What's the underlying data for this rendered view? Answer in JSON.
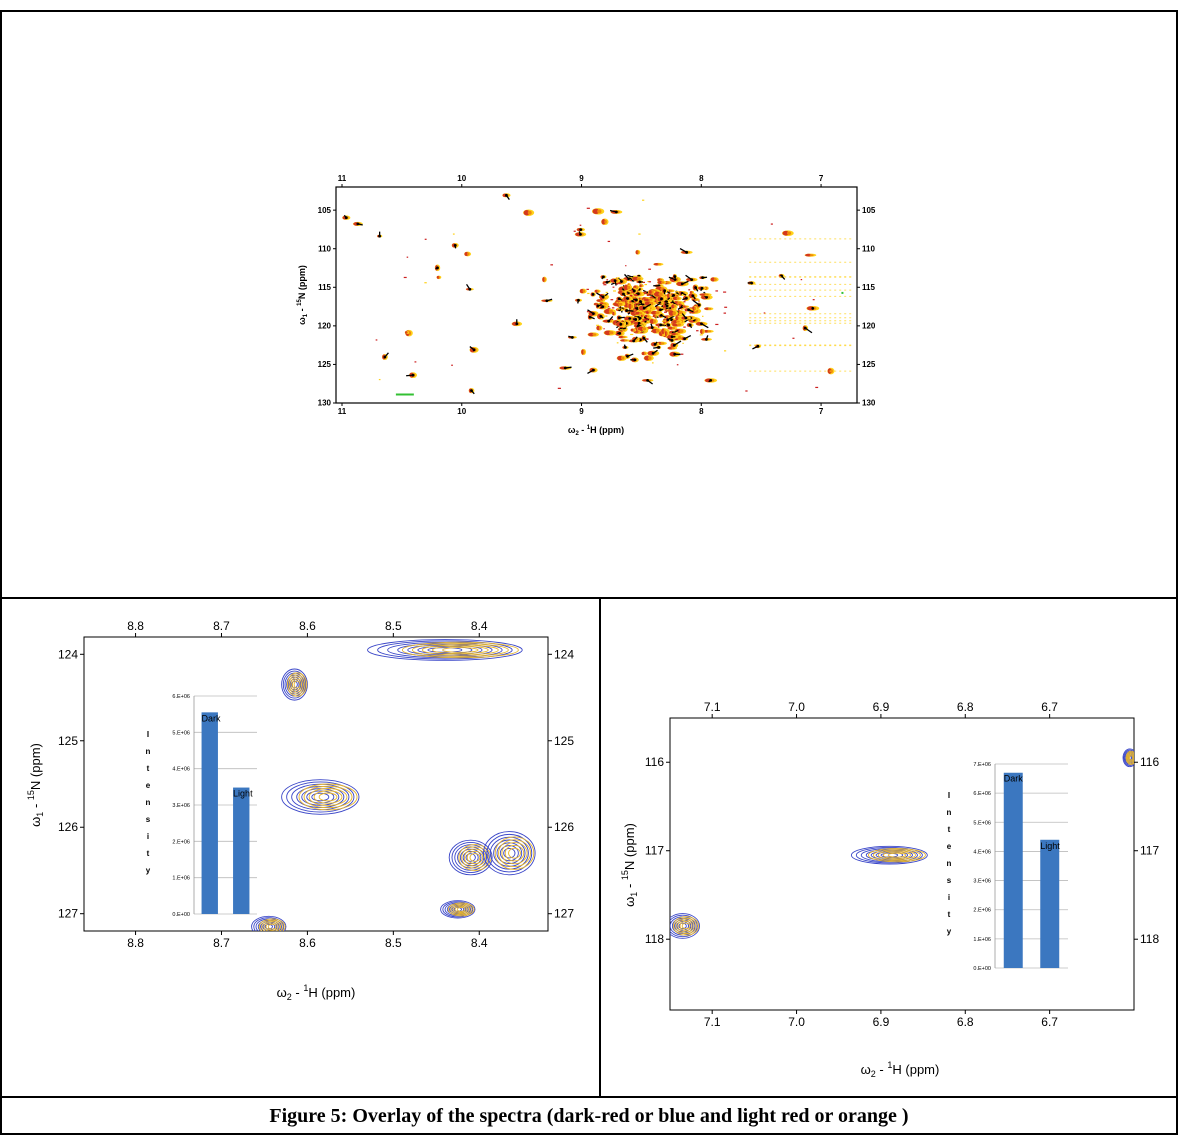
{
  "caption": "Figure 5: Overlay of the spectra (dark-red or blue and light red or orange )",
  "colors": {
    "dark_overview": "#cc1f1f",
    "light_overview": "#ffd21a",
    "orange_overview": "#f08a0a",
    "dark_zoom": "#3a46c8",
    "light_zoom": "#e6b42a",
    "bar": "#3b77c0"
  },
  "chart_data": [
    {
      "type": "scatter",
      "xlabel": "ω2 - 1H (ppm)",
      "ylabel": "ω1 - 15N (ppm)",
      "xlim": [
        11.05,
        6.7
      ],
      "ylim": [
        102,
        130
      ],
      "x_ticks": [
        "11",
        "10",
        "9",
        "8",
        "7"
      ],
      "y_ticks": [
        "105",
        "110",
        "115",
        "120",
        "125",
        "130"
      ],
      "x_tick_values": [
        11,
        10,
        9,
        8,
        7
      ],
      "y_tick_values": [
        105,
        110,
        115,
        120,
        125,
        130
      ]
    },
    {
      "type": "scatter",
      "xlabel": "ω2 - 1H (ppm)",
      "ylabel": "ω1 - 15N (ppm)",
      "xlim": [
        8.86,
        8.32
      ],
      "ylim": [
        123.8,
        127.2
      ],
      "x_ticks": [
        "8.8",
        "8.7",
        "8.6",
        "8.5",
        "8.4"
      ],
      "y_ticks": [
        "124",
        "125",
        "126",
        "127"
      ],
      "x_tick_values": [
        8.8,
        8.7,
        8.6,
        8.5,
        8.4
      ],
      "y_tick_values": [
        124,
        125,
        126,
        127
      ],
      "peaks": [
        {
          "x": 8.615,
          "y": 124.35,
          "rx": 0.015,
          "ry": 0.18
        },
        {
          "x": 8.585,
          "y": 125.65,
          "rx": 0.045,
          "ry": 0.2
        },
        {
          "x": 8.41,
          "y": 126.35,
          "rx": 0.025,
          "ry": 0.2
        },
        {
          "x": 8.365,
          "y": 126.3,
          "rx": 0.03,
          "ry": 0.25
        },
        {
          "x": 8.425,
          "y": 126.95,
          "rx": 0.02,
          "ry": 0.1
        },
        {
          "x": 8.645,
          "y": 127.15,
          "rx": 0.02,
          "ry": 0.12
        },
        {
          "x": 8.44,
          "y": 123.95,
          "rx": 0.09,
          "ry": 0.12
        }
      ],
      "inset": {
        "type": "bar",
        "categories": [
          "Dark",
          "Light"
        ],
        "values": [
          5550000,
          3480000
        ],
        "ylim": [
          0,
          6000000
        ],
        "y_ticks": [
          "0.E+00",
          "1.E+06",
          "2.E+06",
          "3.E+06",
          "4.E+06",
          "5.E+06",
          "6.E+06"
        ],
        "ylabel": "Intensity"
      }
    },
    {
      "type": "scatter",
      "xlabel": "ω2 - 1H (ppm)",
      "ylabel": "ω1 - 15N (ppm)",
      "xlim": [
        7.15,
        6.6
      ],
      "ylim": [
        115.5,
        118.8
      ],
      "x_ticks": [
        "7.1",
        "7.0",
        "6.9",
        "6.8",
        "6.7"
      ],
      "y_ticks": [
        "116",
        "117",
        "118"
      ],
      "x_tick_values": [
        7.1,
        7.0,
        6.9,
        6.8,
        6.7
      ],
      "y_tick_values": [
        116,
        117,
        118
      ],
      "peaks": [
        {
          "x": 6.89,
          "y": 117.05,
          "rx": 0.045,
          "ry": 0.1
        },
        {
          "x": 7.135,
          "y": 117.85,
          "rx": 0.02,
          "ry": 0.14
        },
        {
          "x": 6.605,
          "y": 115.95,
          "rx": 0.008,
          "ry": 0.1
        }
      ],
      "inset": {
        "type": "bar",
        "categories": [
          "Dark",
          "Light"
        ],
        "values": [
          6700000,
          4400000
        ],
        "ylim": [
          0,
          7000000
        ],
        "y_ticks": [
          "0.E+00",
          "1.E+06",
          "2.E+06",
          "3.E+06",
          "4.E+06",
          "5.E+06",
          "6.E+06",
          "7.E+06"
        ],
        "ylabel": "Intensity"
      }
    }
  ]
}
